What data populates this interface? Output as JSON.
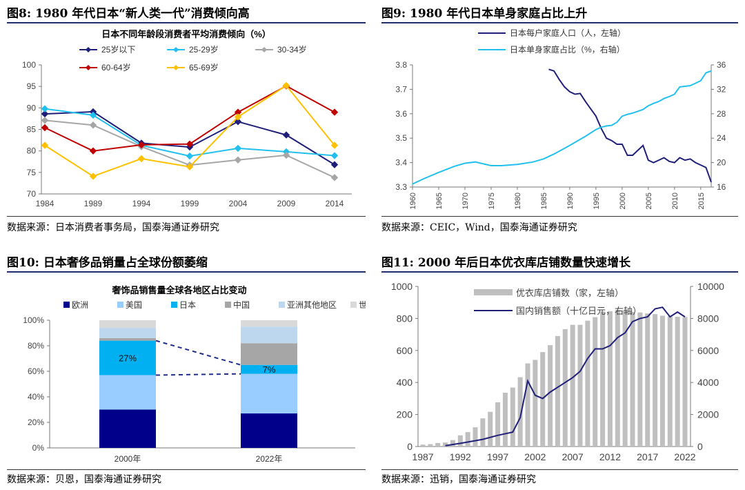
{
  "panels": [
    {
      "title": "图8:  1980 年代日本“新人类一代”消费倾向高",
      "source": "数据来源：日本消费者事务局，国泰海通证券研究",
      "chart_data": {
        "type": "line",
        "title": "日本不同年龄段消费者平均消费倾向（%）",
        "x": [
          "1984",
          "1989",
          "1994",
          "1999",
          "2004",
          "2009",
          "2014"
        ],
        "ylim": [
          70,
          100
        ],
        "yticks": [
          70,
          75,
          80,
          85,
          90,
          95,
          100
        ],
        "grid": false,
        "legend": "top",
        "series": [
          {
            "name": "25岁以下",
            "color": "#1f1f7a",
            "marker": "diamond",
            "values": [
              88.6,
              89.1,
              81.8,
              80.9,
              86.8,
              83.7,
              76.8
            ]
          },
          {
            "name": "25-29岁",
            "color": "#22c0ef",
            "marker": "diamond",
            "values": [
              89.8,
              88.3,
              81.3,
              78.8,
              80.6,
              79.8,
              78.9
            ]
          },
          {
            "name": "30-34岁",
            "color": "#a6a6a6",
            "marker": "diamond",
            "values": [
              87.1,
              86.0,
              81.0,
              76.7,
              77.9,
              79.0,
              73.8
            ]
          },
          {
            "name": "60-64岁",
            "color": "#c00000",
            "marker": "diamond",
            "values": [
              85.4,
              80.0,
              81.4,
              81.6,
              89.0,
              95.1,
              89.0
            ]
          },
          {
            "name": "65-69岁",
            "color": "#ffc000",
            "marker": "diamond",
            "values": [
              81.3,
              74.1,
              78.2,
              76.3,
              87.9,
              95.2,
              81.3
            ]
          }
        ]
      }
    },
    {
      "title": "图9:  1980 年代日本单身家庭占比上升",
      "source": "数据来源：CEIC，Wind，国泰海通证券研究",
      "chart_data": {
        "type": "line",
        "title": "",
        "legend": "top",
        "grid": false,
        "x_ticks": [
          1960,
          1965,
          1970,
          1975,
          1980,
          1985,
          1990,
          1995,
          2000,
          2005,
          2010,
          2015
        ],
        "xlim": [
          1960,
          2017
        ],
        "ylim_left": [
          3.3,
          3.8
        ],
        "yticks_left": [
          "3.3",
          "3.4",
          "3.5",
          "3.6",
          "3.7",
          "3.8"
        ],
        "ylim_right": [
          16,
          36
        ],
        "yticks_right": [
          16,
          20,
          24,
          28,
          32,
          36
        ],
        "series": [
          {
            "name": "日本每户家庭人口（人，左轴）",
            "color": "#1f1f7a",
            "axis": "left",
            "points": [
              [
                1986,
                3.782
              ],
              [
                1987,
                3.775
              ],
              [
                1988,
                3.74
              ],
              [
                1989,
                3.71
              ],
              [
                1990,
                3.69
              ],
              [
                1991,
                3.68
              ],
              [
                1992,
                3.683
              ],
              [
                1993,
                3.65
              ],
              [
                1994,
                3.62
              ],
              [
                1995,
                3.59
              ],
              [
                1996,
                3.54
              ],
              [
                1997,
                3.5
              ],
              [
                1998,
                3.49
              ],
              [
                1999,
                3.475
              ],
              [
                2000,
                3.475
              ],
              [
                2001,
                3.43
              ],
              [
                2002,
                3.43
              ],
              [
                2003,
                3.45
              ],
              [
                2004,
                3.47
              ],
              [
                2005,
                3.41
              ],
              [
                2006,
                3.4
              ],
              [
                2007,
                3.41
              ],
              [
                2008,
                3.42
              ],
              [
                2009,
                3.405
              ],
              [
                2010,
                3.4
              ],
              [
                2011,
                3.42
              ],
              [
                2012,
                3.41
              ],
              [
                2013,
                3.415
              ],
              [
                2014,
                3.4
              ],
              [
                2015,
                3.39
              ],
              [
                2016,
                3.38
              ],
              [
                2017,
                3.32
              ]
            ]
          },
          {
            "name": "日本单身家庭占比（%，右轴）",
            "color": "#22c0ef",
            "axis": "right",
            "points": [
              [
                1960,
                16.5
              ],
              [
                1962,
                17.3
              ],
              [
                1965,
                18.4
              ],
              [
                1968,
                19.4
              ],
              [
                1970,
                19.9
              ],
              [
                1972,
                20.1
              ],
              [
                1973,
                19.9
              ],
              [
                1975,
                19.5
              ],
              [
                1977,
                19.5
              ],
              [
                1980,
                19.7
              ],
              [
                1983,
                20.1
              ],
              [
                1985,
                20.6
              ],
              [
                1987,
                21.4
              ],
              [
                1990,
                22.8
              ],
              [
                1993,
                24.3
              ],
              [
                1995,
                25.4
              ],
              [
                1996,
                25.8
              ],
              [
                1997,
                26.0
              ],
              [
                1998,
                26.1
              ],
              [
                1999,
                26.6
              ],
              [
                2000,
                27.6
              ],
              [
                2001,
                27.9
              ],
              [
                2002,
                28.1
              ],
              [
                2003,
                28.4
              ],
              [
                2004,
                28.7
              ],
              [
                2005,
                29.3
              ],
              [
                2006,
                29.7
              ],
              [
                2007,
                30.0
              ],
              [
                2008,
                30.5
              ],
              [
                2009,
                30.8
              ],
              [
                2010,
                31.2
              ],
              [
                2011,
                32.4
              ],
              [
                2012,
                32.5
              ],
              [
                2013,
                32.6
              ],
              [
                2014,
                33.0
              ],
              [
                2015,
                33.4
              ],
              [
                2016,
                34.7
              ],
              [
                2017,
                35.0
              ]
            ]
          }
        ]
      }
    },
    {
      "title": "图10:  日本奢侈品销量占全球份额萎缩",
      "source": "数据来源：贝恩，国泰海通证券研究",
      "chart_data": {
        "type": "bar",
        "stacked": true,
        "title": "奢饰品销售量全球各地区占比变动",
        "categories": [
          "2000年",
          "2022年"
        ],
        "ylim": [
          0,
          100
        ],
        "yticks": [
          "0%",
          "20%",
          "40%",
          "60%",
          "80%",
          "100%"
        ],
        "legend": "top",
        "series": [
          {
            "name": "欧洲",
            "color": "#00008b",
            "values": [
              30,
              27
            ]
          },
          {
            "name": "美国",
            "color": "#99ccff",
            "values": [
              27,
              31
            ]
          },
          {
            "name": "日本",
            "color": "#00b0f0",
            "values": [
              27,
              7
            ]
          },
          {
            "name": "中国",
            "color": "#a6a6a6",
            "values": [
              2,
              17
            ]
          },
          {
            "name": "亚洲其他地区",
            "color": "#bdd7ee",
            "values": [
              8,
              13
            ]
          },
          {
            "name": "世界其他地区",
            "color": "#d9d9d9",
            "values": [
              6,
              5
            ]
          }
        ],
        "annotations": [
          {
            "category": "2000年",
            "series": "日本",
            "label": "27%"
          },
          {
            "category": "2022年",
            "series": "日本",
            "label": "7%"
          }
        ]
      }
    },
    {
      "title": "图11:  2000 年后日本优衣库店铺数量快速增长",
      "source": "数据来源：迅销，国泰海通证券研究",
      "chart_data": {
        "type": "bar",
        "title": "",
        "legend": "top",
        "grid": false,
        "x_ticks": [
          1987,
          1992,
          1997,
          2002,
          2007,
          2012,
          2017,
          2022
        ],
        "xlim": [
          1987,
          2022
        ],
        "ylim_left": [
          0,
          1000
        ],
        "yticks_left": [
          0,
          200,
          400,
          600,
          800,
          1000
        ],
        "ylim_right": [
          0,
          10000
        ],
        "yticks_right": [
          0,
          2000,
          4000,
          6000,
          8000,
          10000
        ],
        "series": [
          {
            "name": "优衣库店铺数（家，左轴）",
            "type": "bar",
            "axis": "left",
            "color": "#bfbfbf",
            "points": [
              [
                1987,
                12
              ],
              [
                1988,
                15
              ],
              [
                1989,
                22
              ],
              [
                1990,
                25
              ],
              [
                1991,
                40
              ],
              [
                1992,
                70
              ],
              [
                1993,
                90
              ],
              [
                1994,
                120
              ],
              [
                1995,
                176
              ],
              [
                1996,
                217
              ],
              [
                1997,
                276
              ],
              [
                1998,
                336
              ],
              [
                1999,
                368
              ],
              [
                2000,
                433
              ],
              [
                2001,
                519
              ],
              [
                2002,
                541
              ],
              [
                2003,
                590
              ],
              [
                2004,
                633
              ],
              [
                2005,
                690
              ],
              [
                2006,
                733
              ],
              [
                2007,
                760
              ],
              [
                2008,
                760
              ],
              [
                2009,
                786
              ],
              [
                2010,
                808
              ],
              [
                2011,
                843
              ],
              [
                2012,
                845
              ],
              [
                2013,
                853
              ],
              [
                2014,
                852
              ],
              [
                2015,
                841
              ],
              [
                2016,
                837
              ],
              [
                2017,
                831
              ],
              [
                2018,
                827
              ],
              [
                2019,
                817
              ],
              [
                2020,
                813
              ],
              [
                2021,
                810
              ],
              [
                2022,
                809
              ]
            ]
          },
          {
            "name": "国内销售额（十亿日元，右轴）",
            "type": "line",
            "axis": "right",
            "color": "#1f1f7a",
            "points": [
              [
                1990,
                50
              ],
              [
                1992,
                200
              ],
              [
                1995,
                450
              ],
              [
                1997,
                700
              ],
              [
                1999,
                900
              ],
              [
                2000,
                1800
              ],
              [
                2001,
                4100
              ],
              [
                2002,
                3200
              ],
              [
                2003,
                3000
              ],
              [
                2004,
                3400
              ],
              [
                2005,
                3700
              ],
              [
                2006,
                4000
              ],
              [
                2007,
                4300
              ],
              [
                2008,
                4700
              ],
              [
                2009,
                5500
              ],
              [
                2010,
                6100
              ],
              [
                2011,
                6100
              ],
              [
                2012,
                6300
              ],
              [
                2013,
                6800
              ],
              [
                2014,
                7100
              ],
              [
                2015,
                7800
              ],
              [
                2016,
                8000
              ],
              [
                2017,
                8100
              ],
              [
                2018,
                8600
              ],
              [
                2019,
                8700
              ],
              [
                2020,
                8100
              ],
              [
                2021,
                8400
              ],
              [
                2022,
                8100
              ]
            ]
          }
        ]
      }
    }
  ]
}
